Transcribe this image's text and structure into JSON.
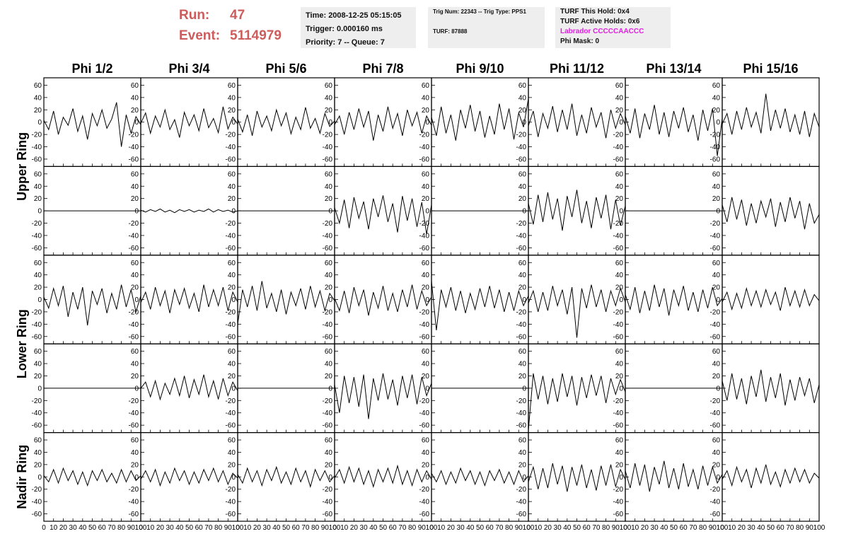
{
  "header": {
    "run_label": "Run:",
    "run": "47",
    "event_label": "Event:",
    "event": "5114979",
    "box1": [
      "Time: 2008-12-25 05:15:05",
      "Trigger: 0.000160 ms",
      "Priority: 7 -- Queue: 7"
    ],
    "box2": [
      "Trig Num: 22343 -- Trig Type: PPS1",
      "TURF: 87888"
    ],
    "box3": [
      "TURF This Hold: 0x4",
      "TURF Active Holds: 0x6",
      "Labrador CCCCCAACCC",
      "Phi Mask: 0"
    ]
  },
  "columns": [
    "Phi 1/2",
    "Phi 3/4",
    "Phi 5/6",
    "Phi 7/8",
    "Phi 9/10",
    "Phi 11/12",
    "Phi 13/14",
    "Phi 15/16"
  ],
  "rings": [
    "Upper Ring",
    "Lower Ring",
    "Nadir Ring"
  ],
  "xlim": [
    0,
    100
  ],
  "ylim": [
    -72,
    72
  ],
  "xticks": [
    0,
    10,
    20,
    30,
    40,
    50,
    60,
    70,
    80,
    90,
    100
  ],
  "yticks": [
    -60,
    -40,
    -20,
    0,
    20,
    40,
    60
  ],
  "x": [
    0,
    5,
    10,
    15,
    20,
    25,
    30,
    35,
    40,
    45,
    50,
    55,
    60,
    65,
    70,
    75,
    80,
    85,
    90,
    95,
    100
  ],
  "panels": [
    [
      [
        3,
        -12,
        18,
        -20,
        8,
        -5,
        22,
        -15,
        10,
        -28,
        14,
        -6,
        20,
        -10,
        5,
        32,
        -40,
        12,
        -18,
        9,
        -4
      ],
      [
        -2,
        15,
        -18,
        10,
        -8,
        20,
        -12,
        4,
        -25,
        16,
        -6,
        12,
        -14,
        22,
        -9,
        6,
        -17,
        25,
        -11,
        8,
        -3
      ],
      [
        5,
        -16,
        12,
        -22,
        18,
        -8,
        10,
        -14,
        20,
        -6,
        15,
        -19,
        8,
        -12,
        24,
        -10,
        6,
        -18,
        14,
        -7,
        2
      ],
      [
        -4,
        10,
        -20,
        16,
        -12,
        22,
        -8,
        18,
        -30,
        12,
        -15,
        25,
        -10,
        14,
        -22,
        20,
        -6,
        16,
        -18,
        10,
        -5
      ],
      [
        8,
        -22,
        25,
        -18,
        12,
        -30,
        20,
        -10,
        28,
        -15,
        18,
        -25,
        10,
        -20,
        30,
        -12,
        22,
        -28,
        15,
        -8,
        38
      ],
      [
        -6,
        18,
        -24,
        14,
        -10,
        26,
        -16,
        20,
        -12,
        30,
        -22,
        12,
        -18,
        24,
        -8,
        16,
        -26,
        20,
        -10,
        14,
        -4
      ],
      [
        10,
        -18,
        22,
        -26,
        14,
        -12,
        28,
        -20,
        16,
        -24,
        18,
        -10,
        24,
        -16,
        12,
        -30,
        20,
        -14,
        22,
        -55,
        6
      ],
      [
        -3,
        14,
        -20,
        18,
        -12,
        24,
        -8,
        16,
        -18,
        46,
        -14,
        20,
        -10,
        22,
        -16,
        12,
        -20,
        18,
        -24,
        14,
        -8
      ]
    ],
    [
      [
        0,
        0,
        0,
        0,
        0,
        0,
        0,
        0,
        0,
        0,
        0,
        0,
        0,
        0,
        0,
        0,
        0,
        0,
        0,
        0,
        0
      ],
      [
        1,
        -2,
        2,
        -1,
        3,
        -2,
        1,
        -3,
        2,
        -1,
        2,
        -2,
        1,
        -1,
        3,
        -2,
        2,
        -1,
        1,
        -2,
        0
      ],
      [
        0,
        0,
        0,
        0,
        0,
        0,
        0,
        0,
        0,
        0,
        0,
        0,
        0,
        0,
        0,
        0,
        0,
        0,
        0,
        0,
        0
      ],
      [
        5,
        -20,
        18,
        -28,
        22,
        -12,
        15,
        -30,
        20,
        -10,
        25,
        -18,
        12,
        -35,
        24,
        -16,
        20,
        -26,
        14,
        -38,
        10
      ],
      [
        0,
        0,
        0,
        0,
        0,
        0,
        0,
        0,
        0,
        0,
        0,
        0,
        0,
        0,
        0,
        0,
        0,
        0,
        0,
        0,
        0
      ],
      [
        12,
        -22,
        26,
        -18,
        30,
        -14,
        20,
        -32,
        24,
        -10,
        34,
        -20,
        16,
        -28,
        22,
        -12,
        26,
        -30,
        18,
        -24,
        8
      ],
      [
        0,
        0,
        0,
        0,
        0,
        0,
        0,
        0,
        0,
        0,
        0,
        0,
        0,
        0,
        0,
        0,
        0,
        0,
        0,
        0,
        0
      ],
      [
        10,
        -18,
        22,
        -14,
        18,
        -24,
        12,
        -20,
        16,
        -10,
        20,
        -26,
        14,
        -18,
        22,
        -12,
        16,
        -30,
        12,
        -20,
        -6
      ]
    ],
    [
      [
        4,
        -14,
        18,
        -10,
        22,
        -28,
        12,
        -16,
        20,
        -42,
        14,
        -8,
        18,
        -22,
        10,
        -16,
        24,
        -12,
        16,
        -20,
        6
      ],
      [
        -5,
        12,
        -16,
        20,
        -10,
        14,
        -22,
        16,
        -8,
        18,
        -14,
        10,
        -20,
        24,
        -12,
        16,
        -10,
        20,
        -18,
        12,
        -4
      ],
      [
        -40,
        16,
        -12,
        22,
        -18,
        30,
        -14,
        10,
        -20,
        16,
        -24,
        12,
        -10,
        18,
        -16,
        22,
        -12,
        14,
        -18,
        10,
        -2
      ],
      [
        2,
        -18,
        14,
        -22,
        20,
        -10,
        16,
        -26,
        12,
        -14,
        22,
        -18,
        10,
        -20,
        16,
        -12,
        24,
        -16,
        14,
        -10,
        4
      ],
      [
        30,
        -50,
        16,
        -12,
        20,
        -18,
        14,
        -22,
        10,
        -16,
        18,
        -12,
        22,
        -14,
        16,
        -20,
        12,
        -18,
        14,
        -10,
        6
      ],
      [
        -6,
        14,
        -20,
        12,
        -18,
        22,
        -10,
        16,
        -24,
        20,
        -62,
        18,
        -14,
        24,
        -12,
        16,
        -20,
        14,
        -10,
        18,
        -4
      ],
      [
        8,
        -16,
        20,
        -22,
        14,
        -18,
        24,
        -12,
        18,
        -26,
        16,
        -10,
        22,
        -18,
        12,
        -20,
        16,
        -14,
        20,
        -10,
        2
      ],
      [
        -4,
        12,
        -16,
        10,
        -14,
        18,
        -10,
        14,
        -12,
        16,
        -8,
        12,
        -18,
        20,
        -10,
        14,
        -12,
        16,
        -10,
        8,
        -2
      ]
    ],
    [
      [
        0,
        0,
        0,
        0,
        0,
        0,
        0,
        0,
        0,
        0,
        0,
        0,
        0,
        0,
        0,
        0,
        0,
        0,
        0,
        0,
        0
      ],
      [
        0,
        10,
        -14,
        12,
        -18,
        8,
        -10,
        16,
        -12,
        20,
        -16,
        14,
        -10,
        22,
        -14,
        12,
        -18,
        16,
        -12,
        10,
        -4
      ],
      [
        0,
        0,
        0,
        0,
        0,
        0,
        0,
        0,
        0,
        0,
        0,
        0,
        0,
        0,
        0,
        0,
        0,
        0,
        0,
        0,
        0
      ],
      [
        6,
        -40,
        20,
        -24,
        18,
        -30,
        22,
        -50,
        16,
        -20,
        24,
        -18,
        14,
        -28,
        20,
        -16,
        22,
        -26,
        18,
        -12,
        8
      ],
      [
        0,
        0,
        0,
        0,
        0,
        0,
        0,
        0,
        0,
        0,
        0,
        0,
        0,
        0,
        0,
        0,
        0,
        0,
        0,
        0,
        0
      ],
      [
        -68,
        24,
        -18,
        20,
        -26,
        16,
        -22,
        24,
        -14,
        20,
        -28,
        18,
        -16,
        22,
        -12,
        20,
        -24,
        16,
        -10,
        14,
        -6
      ],
      [
        0,
        0,
        0,
        0,
        0,
        0,
        0,
        0,
        0,
        0,
        0,
        0,
        0,
        0,
        0,
        0,
        0,
        0,
        0,
        0,
        0
      ],
      [
        12,
        -20,
        24,
        -18,
        16,
        -26,
        20,
        -14,
        30,
        -22,
        18,
        -16,
        24,
        -28,
        14,
        -20,
        18,
        -12,
        16,
        -24,
        6
      ]
    ],
    [
      [
        2,
        -8,
        12,
        -10,
        14,
        -6,
        10,
        -12,
        8,
        -14,
        10,
        -6,
        12,
        -8,
        6,
        -10,
        12,
        -8,
        10,
        -6,
        2
      ],
      [
        -4,
        10,
        -8,
        12,
        -14,
        8,
        -10,
        14,
        -6,
        10,
        -12,
        8,
        -10,
        12,
        -6,
        14,
        -8,
        10,
        -12,
        6,
        -2
      ],
      [
        4,
        -10,
        14,
        -8,
        10,
        -14,
        12,
        -6,
        16,
        -10,
        8,
        -12,
        14,
        -8,
        10,
        -16,
        12,
        -6,
        10,
        -8,
        2
      ],
      [
        -2,
        12,
        -10,
        16,
        -8,
        14,
        -12,
        10,
        -16,
        12,
        -8,
        14,
        -10,
        18,
        -12,
        10,
        -14,
        12,
        -8,
        10,
        -4
      ],
      [
        6,
        -8,
        10,
        -12,
        8,
        -10,
        14,
        -6,
        10,
        -12,
        8,
        -14,
        10,
        -6,
        12,
        -10,
        8,
        -12,
        10,
        -8,
        2
      ],
      [
        -8,
        16,
        -20,
        14,
        -18,
        22,
        -12,
        18,
        -24,
        16,
        -14,
        20,
        -18,
        12,
        -22,
        18,
        -14,
        20,
        -16,
        12,
        -4
      ],
      [
        10,
        -18,
        22,
        -14,
        20,
        -24,
        16,
        -12,
        26,
        -18,
        14,
        -20,
        22,
        -16,
        12,
        -20,
        18,
        -14,
        16,
        -10,
        4
      ],
      [
        -4,
        10,
        -14,
        16,
        -8,
        12,
        -18,
        14,
        -10,
        20,
        -12,
        8,
        -16,
        12,
        -10,
        14,
        -8,
        12,
        -10,
        6,
        -2
      ]
    ]
  ]
}
